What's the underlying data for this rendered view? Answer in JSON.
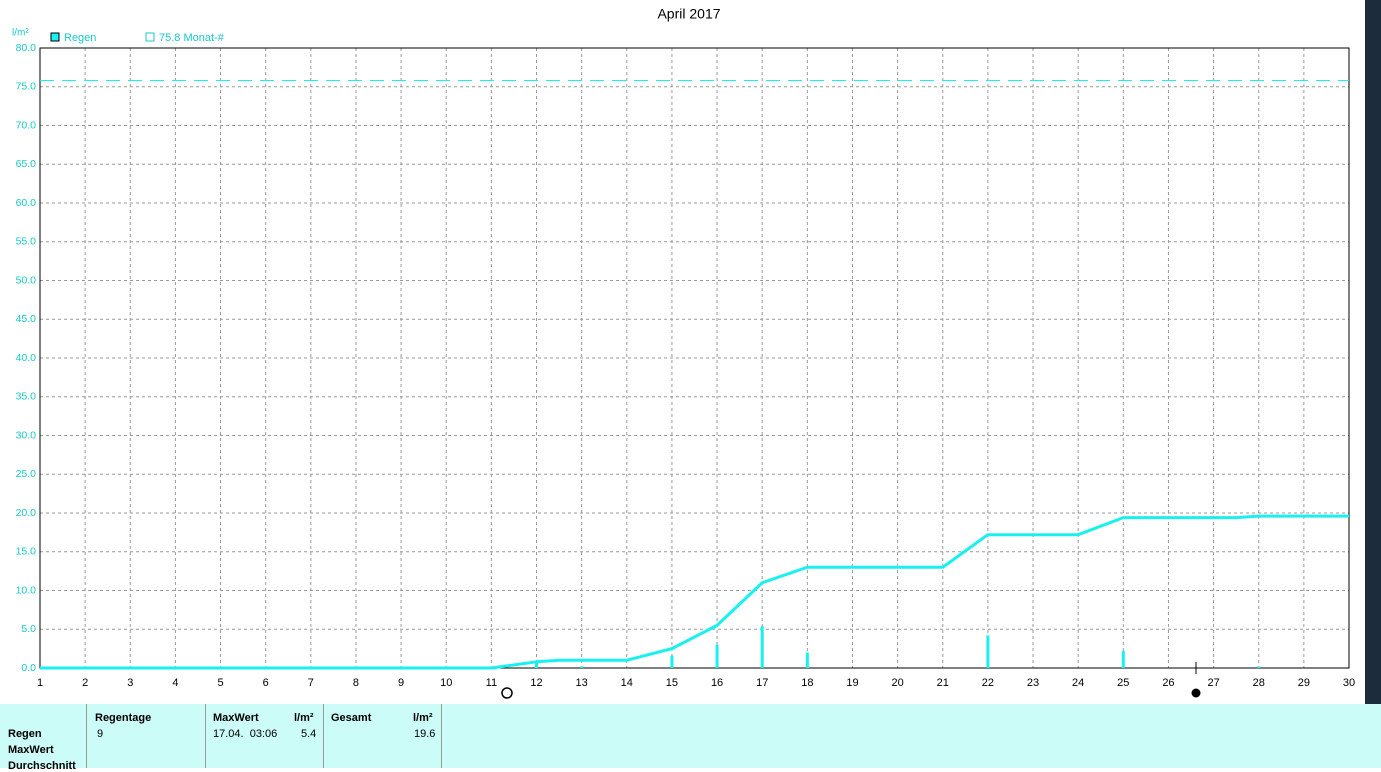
{
  "chart_data": {
    "type": "line",
    "title": "April 2017",
    "ylabel": "l/m²",
    "xlim": [
      1,
      30
    ],
    "ylim": [
      0,
      80
    ],
    "xticks": [
      1,
      2,
      3,
      4,
      5,
      6,
      7,
      8,
      9,
      10,
      11,
      12,
      13,
      14,
      15,
      16,
      17,
      18,
      19,
      20,
      21,
      22,
      23,
      24,
      25,
      26,
      27,
      28,
      29,
      30
    ],
    "yticks": [
      {
        "value": 0,
        "label": "0.0"
      },
      {
        "value": 5,
        "label": "5.0"
      },
      {
        "value": 10,
        "label": "10.0"
      },
      {
        "value": 15,
        "label": "15.0"
      },
      {
        "value": 20,
        "label": "20.0"
      },
      {
        "value": 25,
        "label": "25.0"
      },
      {
        "value": 30,
        "label": "30.0"
      },
      {
        "value": 35,
        "label": "35.0"
      },
      {
        "value": 40,
        "label": "40.0"
      },
      {
        "value": 45,
        "label": "45.0"
      },
      {
        "value": 50,
        "label": "50.0"
      },
      {
        "value": 55,
        "label": "55.0"
      },
      {
        "value": 60,
        "label": "60.0"
      },
      {
        "value": 65,
        "label": "65.0"
      },
      {
        "value": 70,
        "label": "70.0"
      },
      {
        "value": 75,
        "label": "75.0"
      },
      {
        "value": 80,
        "label": "80.0"
      }
    ],
    "grid": true,
    "series": [
      {
        "name": "Regen",
        "color": "#19f0f0",
        "x": [
          1,
          11,
          12,
          12.5,
          14,
          15,
          16,
          17,
          18,
          21,
          22,
          24,
          25,
          27.5,
          28,
          30
        ],
        "values": [
          0,
          0,
          0.8,
          1.0,
          1.0,
          2.5,
          5.5,
          11.0,
          13.0,
          13.0,
          17.2,
          17.2,
          19.4,
          19.4,
          19.6,
          19.6
        ]
      }
    ],
    "bars": {
      "color": "#19f0f0",
      "x": [
        12,
        13,
        15,
        16,
        17,
        18,
        22,
        25,
        28
      ],
      "values": [
        0.8,
        0.2,
        1.6,
        3.0,
        5.4,
        2.0,
        4.2,
        2.2,
        0.2
      ]
    },
    "reference": {
      "value": 75.8,
      "label": "75.8 Monat-#",
      "color": "#19f0f0"
    }
  },
  "table": {
    "row_labels": [
      "Regen",
      "MaxWert",
      "Durchschnitt"
    ],
    "headers": [
      "Regentage",
      "MaxWert",
      "l/m²",
      "Gesamt",
      "l/m²"
    ],
    "cells": [
      "9",
      "17.04.  03:06",
      "5.4",
      "19.6"
    ]
  }
}
